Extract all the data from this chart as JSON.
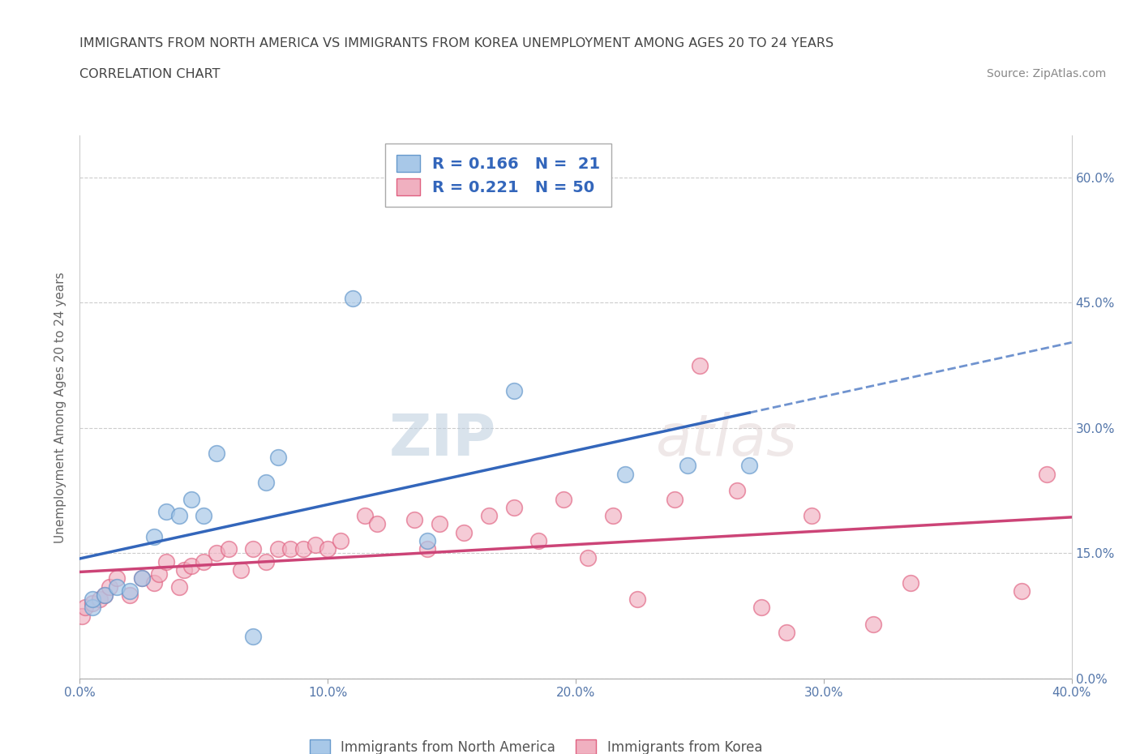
{
  "title_line1": "IMMIGRANTS FROM NORTH AMERICA VS IMMIGRANTS FROM KOREA UNEMPLOYMENT AMONG AGES 20 TO 24 YEARS",
  "title_line2": "CORRELATION CHART",
  "source_text": "Source: ZipAtlas.com",
  "ylabel": "Unemployment Among Ages 20 to 24 years",
  "xlim": [
    0.0,
    0.4
  ],
  "ylim": [
    0.0,
    0.65
  ],
  "xticks": [
    0.0,
    0.1,
    0.2,
    0.3,
    0.4
  ],
  "xtick_labels": [
    "0.0%",
    "10.0%",
    "20.0%",
    "30.0%",
    "40.0%"
  ],
  "yticks": [
    0.0,
    0.15,
    0.3,
    0.45,
    0.6
  ],
  "ytick_labels": [
    "0.0%",
    "15.0%",
    "30.0%",
    "45.0%",
    "60.0%"
  ],
  "north_america_color": "#a8c8e8",
  "korea_color": "#f0b0c0",
  "na_edge_color": "#6699cc",
  "korea_edge_color": "#e06080",
  "trend_na_color": "#3366bb",
  "trend_korea_color": "#cc4477",
  "trend_na_solid_end": 0.27,
  "legend_R_na": "0.166",
  "legend_N_na": "21",
  "legend_R_korea": "0.221",
  "legend_N_korea": "50",
  "legend_label_na": "Immigrants from North America",
  "legend_label_korea": "Immigrants from Korea",
  "watermark_zip": "ZIP",
  "watermark_atlas": "atlas",
  "north_america_x": [
    0.005,
    0.005,
    0.01,
    0.015,
    0.02,
    0.025,
    0.03,
    0.035,
    0.04,
    0.045,
    0.05,
    0.055,
    0.07,
    0.075,
    0.08,
    0.11,
    0.14,
    0.175,
    0.22,
    0.245,
    0.27
  ],
  "north_america_y": [
    0.085,
    0.095,
    0.1,
    0.11,
    0.105,
    0.12,
    0.17,
    0.2,
    0.195,
    0.215,
    0.195,
    0.27,
    0.05,
    0.235,
    0.265,
    0.455,
    0.165,
    0.345,
    0.245,
    0.255,
    0.255
  ],
  "korea_x": [
    0.001,
    0.002,
    0.005,
    0.008,
    0.01,
    0.012,
    0.015,
    0.02,
    0.025,
    0.03,
    0.032,
    0.035,
    0.04,
    0.042,
    0.045,
    0.05,
    0.055,
    0.06,
    0.065,
    0.07,
    0.075,
    0.08,
    0.085,
    0.09,
    0.095,
    0.1,
    0.105,
    0.115,
    0.12,
    0.135,
    0.14,
    0.145,
    0.155,
    0.165,
    0.175,
    0.185,
    0.195,
    0.205,
    0.215,
    0.225,
    0.24,
    0.25,
    0.265,
    0.275,
    0.285,
    0.295,
    0.32,
    0.335,
    0.38,
    0.39
  ],
  "korea_y": [
    0.075,
    0.085,
    0.09,
    0.095,
    0.1,
    0.11,
    0.12,
    0.1,
    0.12,
    0.115,
    0.125,
    0.14,
    0.11,
    0.13,
    0.135,
    0.14,
    0.15,
    0.155,
    0.13,
    0.155,
    0.14,
    0.155,
    0.155,
    0.155,
    0.16,
    0.155,
    0.165,
    0.195,
    0.185,
    0.19,
    0.155,
    0.185,
    0.175,
    0.195,
    0.205,
    0.165,
    0.215,
    0.145,
    0.195,
    0.095,
    0.215,
    0.375,
    0.225,
    0.085,
    0.055,
    0.195,
    0.065,
    0.115,
    0.105,
    0.245
  ]
}
